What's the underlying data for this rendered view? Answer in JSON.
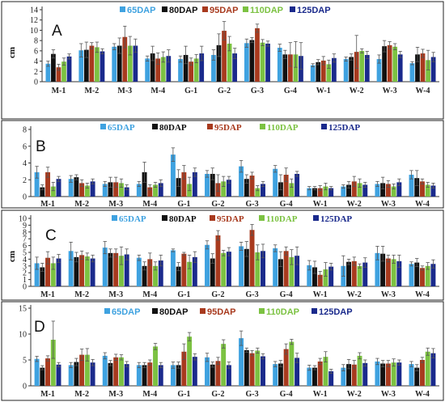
{
  "series_colors": [
    "#3fa2e0",
    "#111111",
    "#a83a1e",
    "#7cc242",
    "#1a2a8c"
  ],
  "chart_data": [
    {
      "type": "bar",
      "panel_label": "A",
      "ylabel": "cm",
      "ylim": [
        0,
        14
      ],
      "yticks": [
        0,
        2,
        4,
        6,
        8,
        10,
        12,
        14
      ],
      "categories": [
        "M-1",
        "M-2",
        "M-3",
        "M-4",
        "G-1",
        "G-2",
        "G-3",
        "G-4",
        "W-1",
        "W-2",
        "W-3",
        "W-4"
      ],
      "legend": [
        "65DAP",
        "80DAP",
        "95DAP",
        "110DAP",
        "125DAP"
      ],
      "series": [
        {
          "name": "65DAP",
          "values": [
            3.5,
            6.1,
            6.8,
            4.5,
            4.4,
            5.2,
            7.5,
            6.6,
            3.2,
            4.4,
            4.4,
            3.6
          ],
          "errors": [
            0.5,
            1.3,
            0.6,
            0.5,
            0.6,
            1.0,
            0.8,
            0.7,
            0.3,
            0.4,
            0.8,
            0.3
          ]
        },
        {
          "name": "80DAP",
          "values": [
            5.4,
            6.2,
            7.0,
            5.5,
            5.2,
            7.1,
            8.1,
            5.3,
            3.8,
            4.8,
            6.9,
            5.3
          ],
          "errors": [
            0.8,
            1.5,
            1.5,
            1.4,
            1.7,
            2.2,
            0.5,
            0.8,
            0.5,
            0.6,
            1.1,
            1.4
          ]
        },
        {
          "name": "95DAP",
          "values": [
            2.8,
            7.0,
            8.7,
            4.5,
            3.9,
            9.9,
            10.4,
            5.3,
            4.1,
            5.8,
            7.1,
            5.5
          ],
          "errors": [
            0.6,
            0.6,
            2.1,
            1.1,
            0.7,
            1.8,
            0.8,
            2.3,
            0.8,
            3.2,
            0.7,
            0.8
          ]
        },
        {
          "name": "110DAP",
          "values": [
            3.9,
            6.7,
            7.0,
            4.8,
            4.5,
            7.4,
            7.6,
            5.3,
            3.4,
            6.0,
            6.8,
            4.2
          ],
          "errors": [
            0.7,
            1.0,
            1.8,
            1.0,
            0.8,
            1.4,
            0.6,
            2.5,
            0.8,
            0.4,
            0.6,
            1.9
          ]
        },
        {
          "name": "125DAP",
          "values": [
            4.9,
            5.9,
            7.0,
            5.0,
            5.5,
            5.5,
            7.4,
            5.0,
            4.6,
            5.2,
            5.3,
            4.8
          ],
          "errors": [
            0.5,
            0.5,
            1.3,
            1.2,
            1.4,
            1.0,
            0.5,
            2.6,
            0.8,
            0.7,
            0.6,
            0.9
          ]
        }
      ]
    },
    {
      "type": "bar",
      "panel_label": "B",
      "ylabel": "",
      "ylim": [
        0,
        8
      ],
      "yticks": [
        0,
        2,
        4,
        6,
        8
      ],
      "categories": [
        "M-1",
        "M-2",
        "M-3",
        "M-4",
        "G-1",
        "G-2",
        "G-3",
        "G-4",
        "W-1",
        "W-2",
        "W-3",
        "W-4"
      ],
      "legend": [
        "65DAP",
        "80DAP",
        "95DAP",
        "110DAP",
        "125DAP"
      ],
      "series": [
        {
          "name": "65DAP",
          "values": [
            2.9,
            2.1,
            1.5,
            1.5,
            5.0,
            2.7,
            3.6,
            3.3,
            1.0,
            1.2,
            1.5,
            2.6
          ],
          "errors": [
            0.7,
            0.4,
            0.3,
            0.3,
            0.8,
            0.4,
            0.7,
            0.4,
            0.2,
            0.2,
            0.3,
            0.5
          ]
        },
        {
          "name": "80DAP",
          "values": [
            1.1,
            2.3,
            1.7,
            2.9,
            2.2,
            2.7,
            2.1,
            1.7,
            1.0,
            1.4,
            1.6,
            2.2
          ],
          "errors": [
            0.3,
            0.3,
            0.6,
            1.2,
            1.0,
            0.7,
            0.5,
            0.9,
            0.2,
            0.4,
            0.7,
            0.9
          ]
        },
        {
          "name": "95DAP",
          "values": [
            2.9,
            1.6,
            1.7,
            1.1,
            2.9,
            1.6,
            2.5,
            2.6,
            1.0,
            1.8,
            1.5,
            1.8
          ],
          "errors": [
            0.6,
            0.4,
            0.6,
            0.3,
            0.8,
            1.0,
            0.4,
            0.8,
            0.3,
            0.6,
            0.4,
            0.3
          ]
        },
        {
          "name": "110DAP",
          "values": [
            1.2,
            1.3,
            1.6,
            1.4,
            1.5,
            1.8,
            1.0,
            1.6,
            1.2,
            1.6,
            1.2,
            1.4
          ],
          "errors": [
            0.5,
            0.3,
            0.5,
            0.3,
            0.8,
            0.6,
            0.3,
            0.5,
            0.4,
            0.5,
            0.3,
            0.3
          ]
        },
        {
          "name": "125DAP",
          "values": [
            2.1,
            1.8,
            1.1,
            1.6,
            2.9,
            2.0,
            1.5,
            2.7,
            1.0,
            1.4,
            1.7,
            1.3
          ],
          "errors": [
            0.3,
            0.3,
            0.3,
            0.4,
            0.5,
            0.4,
            0.3,
            0.3,
            0.2,
            0.3,
            0.4,
            0.3
          ]
        }
      ]
    },
    {
      "type": "bar",
      "panel_label": "C",
      "ylabel": "cm",
      "ylim": [
        0,
        10
      ],
      "yticks": [
        0,
        1,
        2,
        3,
        4,
        5,
        6,
        7,
        8,
        9,
        10
      ],
      "categories": [
        "M-1",
        "M-2",
        "M-3",
        "M-4",
        "G-1",
        "G-2",
        "G-3",
        "G-4",
        "W-1",
        "W-2",
        "W-3",
        "W-4"
      ],
      "legend": [
        "65DAP",
        "80DAP",
        "95DAP",
        "110DAP",
        "125DAP"
      ],
      "series": [
        {
          "name": "65DAP",
          "values": [
            3.4,
            5.2,
            5.7,
            4.2,
            5.3,
            6.1,
            5.9,
            5.6,
            3.1,
            3.0,
            4.9,
            3.3
          ],
          "errors": [
            0.9,
            1.3,
            0.9,
            0.4,
            0.2,
            0.6,
            0.6,
            0.5,
            0.7,
            1.5,
            1.0,
            0.3
          ]
        },
        {
          "name": "80DAP",
          "values": [
            2.8,
            4.3,
            4.9,
            3.0,
            2.9,
            4.1,
            5.5,
            4.0,
            2.8,
            3.6,
            4.8,
            3.5
          ],
          "errors": [
            0.6,
            0.7,
            0.6,
            0.6,
            0.6,
            0.7,
            1.1,
            1.1,
            0.9,
            0.4,
            1.1,
            0.6
          ]
        },
        {
          "name": "95DAP",
          "values": [
            4.2,
            4.6,
            4.9,
            4.0,
            4.8,
            7.5,
            8.3,
            5.2,
            1.7,
            3.7,
            4.1,
            2.7
          ],
          "errors": [
            0.9,
            0.6,
            0.6,
            0.9,
            0.2,
            0.7,
            0.8,
            0.6,
            0.5,
            0.6,
            0.5,
            0.3
          ]
        },
        {
          "name": "110DAP",
          "values": [
            3.4,
            4.4,
            4.5,
            3.0,
            3.6,
            4.9,
            5.0,
            4.3,
            2.5,
            3.0,
            4.0,
            3.0
          ],
          "errors": [
            0.9,
            0.5,
            1.3,
            0.6,
            1.0,
            0.4,
            1.1,
            1.1,
            1.0,
            0.3,
            0.6,
            0.5
          ]
        },
        {
          "name": "125DAP",
          "values": [
            4.1,
            4.1,
            4.7,
            3.8,
            4.3,
            5.1,
            5.2,
            4.5,
            2.9,
            3.5,
            3.7,
            3.3
          ],
          "errors": [
            0.6,
            0.5,
            0.8,
            0.8,
            0.8,
            0.6,
            1.0,
            1.3,
            0.5,
            0.7,
            0.9,
            0.6
          ]
        }
      ]
    },
    {
      "type": "bar",
      "panel_label": "D",
      "ylabel": "",
      "ylim": [
        0,
        15
      ],
      "yticks": [
        0,
        5,
        10,
        15
      ],
      "categories": [
        "M-1",
        "M-2",
        "M-3",
        "M-4",
        "G-1",
        "G-2",
        "G-3",
        "G-4",
        "W-1",
        "W-2",
        "W-3",
        "W-4"
      ],
      "legend": [
        "65DAP",
        "80DAP",
        "95DAP",
        "110DAP",
        "125DAP"
      ],
      "series": [
        {
          "name": "65DAP",
          "values": [
            5.2,
            4.0,
            5.8,
            4.0,
            4.0,
            5.5,
            9.2,
            4.2,
            3.5,
            3.5,
            4.7,
            4.2
          ],
          "errors": [
            0.5,
            0.5,
            0.6,
            0.5,
            0.6,
            0.8,
            1.4,
            0.5,
            0.5,
            0.6,
            0.6,
            0.5
          ]
        },
        {
          "name": "80DAP",
          "values": [
            3.5,
            4.6,
            4.4,
            4.0,
            4.0,
            4.1,
            6.9,
            4.3,
            3.5,
            4.2,
            4.3,
            3.5
          ],
          "errors": [
            0.4,
            0.7,
            0.5,
            0.5,
            0.6,
            0.5,
            0.4,
            0.6,
            0.4,
            0.9,
            0.6,
            0.6
          ]
        },
        {
          "name": "95DAP",
          "values": [
            5.3,
            6.0,
            5.5,
            4.5,
            6.6,
            4.8,
            6.3,
            7.1,
            4.7,
            4.1,
            4.3,
            5.0
          ],
          "errors": [
            0.5,
            1.1,
            0.6,
            0.5,
            1.5,
            0.7,
            0.5,
            1.0,
            0.6,
            0.8,
            0.6,
            0.5
          ]
        },
        {
          "name": "110DAP",
          "values": [
            8.9,
            6.0,
            5.5,
            7.6,
            9.5,
            8.1,
            6.8,
            8.5,
            5.6,
            5.8,
            4.5,
            6.6
          ],
          "errors": [
            3.6,
            1.2,
            0.5,
            0.6,
            0.8,
            0.8,
            0.5,
            0.5,
            1.0,
            0.6,
            0.7,
            0.7
          ]
        },
        {
          "name": "125DAP",
          "values": [
            4.1,
            4.5,
            4.2,
            4.0,
            5.6,
            4.0,
            5.7,
            5.4,
            2.8,
            4.4,
            4.5,
            6.3
          ],
          "errors": [
            0.4,
            0.6,
            0.5,
            0.5,
            0.6,
            0.6,
            0.5,
            0.9,
            0.4,
            0.6,
            0.5,
            0.9
          ]
        }
      ]
    }
  ]
}
